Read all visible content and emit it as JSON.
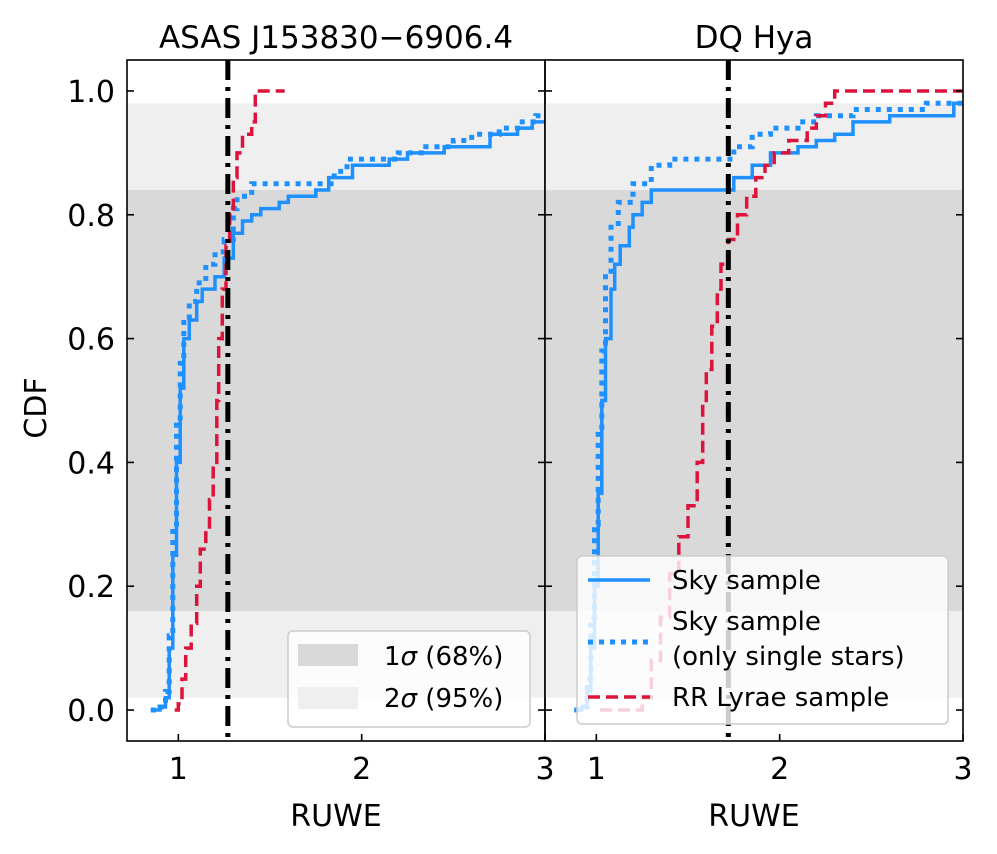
{
  "chart_data": {
    "type": "line",
    "ylabel": "CDF",
    "ylim": [
      -0.05,
      1.05
    ],
    "yticks": [
      0.0,
      0.2,
      0.4,
      0.6,
      0.8,
      1.0
    ],
    "ytick_labels": [
      "0.0",
      "0.2",
      "0.4",
      "0.6",
      "0.8",
      "1.0"
    ],
    "bands": [
      {
        "name": "1σ (68%)",
        "range": [
          0.16,
          0.84
        ],
        "color": "#d9d9d9"
      },
      {
        "name": "2σ (95%)",
        "range": [
          0.02,
          0.98
        ],
        "color": "#efefef"
      }
    ],
    "series_styles": {
      "Sky sample": {
        "color": "#1e90ff",
        "dash": "solid"
      },
      "Sky sample (only single stars)": {
        "color": "#1e90ff",
        "dash": "dotted"
      },
      "RR Lyrae sample": {
        "color": "#dc143c",
        "dash": "dashed"
      }
    },
    "panels": [
      {
        "title": "ASAS J153830−6906.4",
        "xlabel": "RUWE",
        "xlim": [
          0.72,
          3.0
        ],
        "xticks": [
          1,
          2,
          3
        ],
        "xtick_labels": [
          "1",
          "2",
          "3"
        ],
        "vline": 1.27,
        "legend": {
          "placement": "lower-right",
          "entries": [
            {
              "label_prefix": "1",
              "label_symbol": "σ",
              "label_suffix": " (68%)"
            },
            {
              "label_prefix": "2",
              "label_symbol": "σ",
              "label_suffix": " (95%)"
            }
          ]
        },
        "series": [
          {
            "name": "Sky sample",
            "points": [
              [
                0.85,
                0
              ],
              [
                0.88,
                0
              ],
              [
                0.9,
                0.005
              ],
              [
                0.93,
                0.02
              ],
              [
                0.95,
                0.1
              ],
              [
                0.97,
                0.25
              ],
              [
                0.99,
                0.4
              ],
              [
                1.01,
                0.52
              ],
              [
                1.03,
                0.6
              ],
              [
                1.06,
                0.63
              ],
              [
                1.1,
                0.66
              ],
              [
                1.13,
                0.68
              ],
              [
                1.2,
                0.7
              ],
              [
                1.25,
                0.73
              ],
              [
                1.3,
                0.77
              ],
              [
                1.35,
                0.79
              ],
              [
                1.4,
                0.8
              ],
              [
                1.45,
                0.81
              ],
              [
                1.55,
                0.82
              ],
              [
                1.6,
                0.83
              ],
              [
                1.75,
                0.84
              ],
              [
                1.82,
                0.86
              ],
              [
                1.95,
                0.88
              ],
              [
                2.15,
                0.89
              ],
              [
                2.25,
                0.9
              ],
              [
                2.45,
                0.91
              ],
              [
                2.7,
                0.93
              ],
              [
                2.85,
                0.94
              ],
              [
                2.93,
                0.95
              ],
              [
                3.0,
                0.95
              ]
            ]
          },
          {
            "name": "Sky sample (only single stars)",
            "points": [
              [
                0.85,
                0
              ],
              [
                0.88,
                0
              ],
              [
                0.9,
                0.005
              ],
              [
                0.93,
                0.03
              ],
              [
                0.95,
                0.12
              ],
              [
                0.97,
                0.3
              ],
              [
                0.99,
                0.46
              ],
              [
                1.01,
                0.56
              ],
              [
                1.03,
                0.63
              ],
              [
                1.06,
                0.66
              ],
              [
                1.1,
                0.69
              ],
              [
                1.15,
                0.72
              ],
              [
                1.2,
                0.74
              ],
              [
                1.25,
                0.76
              ],
              [
                1.3,
                0.81
              ],
              [
                1.32,
                0.83
              ],
              [
                1.4,
                0.85
              ],
              [
                1.5,
                0.85
              ],
              [
                1.75,
                0.85
              ],
              [
                1.85,
                0.87
              ],
              [
                1.92,
                0.89
              ],
              [
                2.2,
                0.9
              ],
              [
                2.35,
                0.91
              ],
              [
                2.5,
                0.92
              ],
              [
                2.6,
                0.93
              ],
              [
                2.75,
                0.94
              ],
              [
                2.85,
                0.95
              ],
              [
                2.95,
                0.96
              ],
              [
                3.0,
                0.96
              ]
            ]
          },
          {
            "name": "RR Lyrae sample",
            "points": [
              [
                0.98,
                0
              ],
              [
                1.0,
                0.01
              ],
              [
                1.02,
                0.05
              ],
              [
                1.04,
                0.1
              ],
              [
                1.07,
                0.14
              ],
              [
                1.1,
                0.2
              ],
              [
                1.12,
                0.26
              ],
              [
                1.15,
                0.29
              ],
              [
                1.17,
                0.34
              ],
              [
                1.19,
                0.4
              ],
              [
                1.21,
                0.5
              ],
              [
                1.22,
                0.6
              ],
              [
                1.24,
                0.68
              ],
              [
                1.26,
                0.75
              ],
              [
                1.28,
                0.8
              ],
              [
                1.3,
                0.86
              ],
              [
                1.32,
                0.9
              ],
              [
                1.35,
                0.93
              ],
              [
                1.4,
                0.95
              ],
              [
                1.42,
                1.0
              ],
              [
                1.58,
                1.0
              ]
            ]
          }
        ]
      },
      {
        "title": "DQ Hya",
        "xlabel": "RUWE",
        "xlim": [
          0.72,
          3.0
        ],
        "xticks": [
          1,
          2,
          3
        ],
        "xtick_labels": [
          "1",
          "2",
          "3"
        ],
        "vline": 1.72,
        "legend": {
          "placement": "lower-right",
          "entries": [
            {
              "label": "Sky sample"
            },
            {
              "label": "Sky sample",
              "label2": "(only single stars)"
            },
            {
              "label": "RR Lyrae sample"
            }
          ]
        },
        "series": [
          {
            "name": "Sky sample",
            "points": [
              [
                0.88,
                0
              ],
              [
                0.92,
                0.005
              ],
              [
                0.95,
                0.03
              ],
              [
                0.97,
                0.1
              ],
              [
                0.99,
                0.2
              ],
              [
                1.01,
                0.35
              ],
              [
                1.03,
                0.5
              ],
              [
                1.05,
                0.6
              ],
              [
                1.08,
                0.68
              ],
              [
                1.1,
                0.72
              ],
              [
                1.13,
                0.75
              ],
              [
                1.18,
                0.78
              ],
              [
                1.2,
                0.8
              ],
              [
                1.25,
                0.82
              ],
              [
                1.3,
                0.84
              ],
              [
                1.4,
                0.84
              ],
              [
                1.72,
                0.84
              ],
              [
                1.75,
                0.86
              ],
              [
                1.85,
                0.88
              ],
              [
                1.95,
                0.9
              ],
              [
                2.1,
                0.91
              ],
              [
                2.2,
                0.92
              ],
              [
                2.3,
                0.93
              ],
              [
                2.4,
                0.95
              ],
              [
                2.6,
                0.96
              ],
              [
                2.85,
                0.96
              ],
              [
                2.95,
                0.98
              ],
              [
                3.0,
                0.98
              ]
            ]
          },
          {
            "name": "Sky sample (only single stars)",
            "points": [
              [
                0.88,
                0
              ],
              [
                0.92,
                0.005
              ],
              [
                0.95,
                0.05
              ],
              [
                0.97,
                0.15
              ],
              [
                0.99,
                0.3
              ],
              [
                1.01,
                0.45
              ],
              [
                1.03,
                0.58
              ],
              [
                1.05,
                0.7
              ],
              [
                1.08,
                0.78
              ],
              [
                1.12,
                0.82
              ],
              [
                1.2,
                0.85
              ],
              [
                1.3,
                0.88
              ],
              [
                1.4,
                0.89
              ],
              [
                1.72,
                0.89
              ],
              [
                1.75,
                0.91
              ],
              [
                1.85,
                0.93
              ],
              [
                1.95,
                0.94
              ],
              [
                2.1,
                0.95
              ],
              [
                2.2,
                0.96
              ],
              [
                2.4,
                0.97
              ],
              [
                2.8,
                0.98
              ],
              [
                3.0,
                0.98
              ]
            ]
          },
          {
            "name": "RR Lyrae sample",
            "points": [
              [
                1.02,
                0
              ],
              [
                1.15,
                0
              ],
              [
                1.25,
                0.02
              ],
              [
                1.3,
                0.08
              ],
              [
                1.35,
                0.15
              ],
              [
                1.4,
                0.22
              ],
              [
                1.45,
                0.28
              ],
              [
                1.5,
                0.33
              ],
              [
                1.55,
                0.4
              ],
              [
                1.58,
                0.5
              ],
              [
                1.6,
                0.55
              ],
              [
                1.63,
                0.62
              ],
              [
                1.66,
                0.68
              ],
              [
                1.68,
                0.72
              ],
              [
                1.72,
                0.76
              ],
              [
                1.77,
                0.8
              ],
              [
                1.82,
                0.83
              ],
              [
                1.87,
                0.86
              ],
              [
                1.92,
                0.88
              ],
              [
                1.97,
                0.9
              ],
              [
                2.05,
                0.92
              ],
              [
                2.15,
                0.94
              ],
              [
                2.2,
                0.96
              ],
              [
                2.25,
                0.98
              ],
              [
                2.3,
                1.0
              ],
              [
                3.0,
                1.0
              ]
            ]
          }
        ]
      }
    ]
  }
}
